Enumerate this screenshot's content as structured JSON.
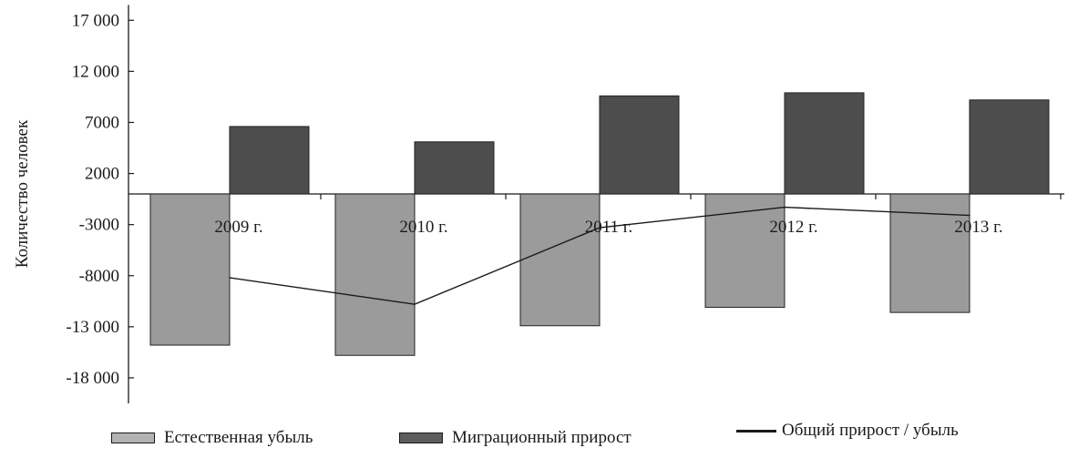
{
  "chart_data": {
    "type": "bar",
    "categories": [
      "2009 г.",
      "2010 г.",
      "2011 г.",
      "2012 г.",
      "2013 г."
    ],
    "series": [
      {
        "name": "Естественная убыль",
        "kind": "bar",
        "color": "#9b9b9b",
        "values": [
          -14800,
          -15800,
          -12900,
          -11100,
          -11600
        ]
      },
      {
        "name": "Миграционный прирост",
        "kind": "bar",
        "color": "#4d4d4d",
        "values": [
          6600,
          5100,
          9600,
          9900,
          9200
        ]
      },
      {
        "name": "Общий прирост / убыль",
        "kind": "line",
        "color": "#1a1a1a",
        "values": [
          -8200,
          -10800,
          -3300,
          -1300,
          -2100
        ]
      }
    ],
    "yticks": [
      "17 000",
      "12 000",
      "7000",
      "2000",
      "-3000",
      "-8000",
      "-13 000",
      "-18 000"
    ],
    "ytick_values": [
      17000,
      12000,
      7000,
      2000,
      -3000,
      -8000,
      -13000,
      -18000
    ],
    "ylabel": "Количество человек",
    "xlabel": "",
    "ylim": [
      -20500,
      18500
    ],
    "grid": false,
    "legend_position": "bottom"
  }
}
